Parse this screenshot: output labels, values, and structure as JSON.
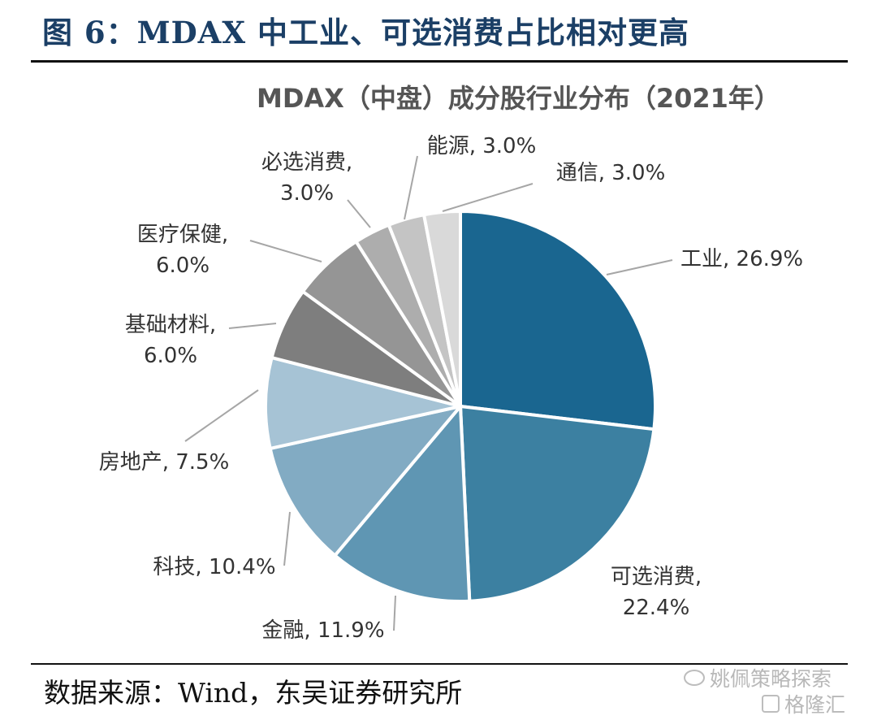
{
  "figure": {
    "title": "图 6：MDAX 中工业、可选消费占比相对更高",
    "source": "数据来源：Wind，东吴证券研究所"
  },
  "watermark": {
    "line1": "姚佩策略探索",
    "line2": "格隆汇"
  },
  "chart_data": {
    "type": "pie",
    "title": "MDAX（中盘）成分股行业分布（2021年）",
    "unit": "%",
    "start_angle": "12 o'clock",
    "direction": "clockwise",
    "slices": [
      {
        "name": "工业",
        "value": 26.9,
        "label": "工业, 26.9%",
        "color": "#1a6690"
      },
      {
        "name": "可选消费",
        "value": 22.4,
        "label_lines": [
          "可选消费,",
          "22.4%"
        ],
        "color": "#3c80a1"
      },
      {
        "name": "金融",
        "value": 11.9,
        "label": "金融, 11.9%",
        "color": "#5f96b3"
      },
      {
        "name": "科技",
        "value": 10.4,
        "label": "科技, 10.4%",
        "color": "#82abc3"
      },
      {
        "name": "房地产",
        "value": 7.5,
        "label": "房地产, 7.5%",
        "color": "#a6c3d5"
      },
      {
        "name": "基础材料",
        "value": 6.0,
        "label_lines": [
          "基础材料,",
          "6.0%"
        ],
        "color": "#7e7e7e"
      },
      {
        "name": "医疗保健",
        "value": 6.0,
        "label_lines": [
          "医疗保健,",
          "6.0%"
        ],
        "color": "#959595"
      },
      {
        "name": "必选消费",
        "value": 3.0,
        "label_lines": [
          "必选消费,",
          "3.0%"
        ],
        "color": "#adadad"
      },
      {
        "name": "能源",
        "value": 3.0,
        "label": "能源, 3.0%",
        "color": "#c4c4c4"
      },
      {
        "name": "通信",
        "value": 3.0,
        "label": "通信, 3.0%",
        "color": "#d9d9d9"
      }
    ]
  }
}
